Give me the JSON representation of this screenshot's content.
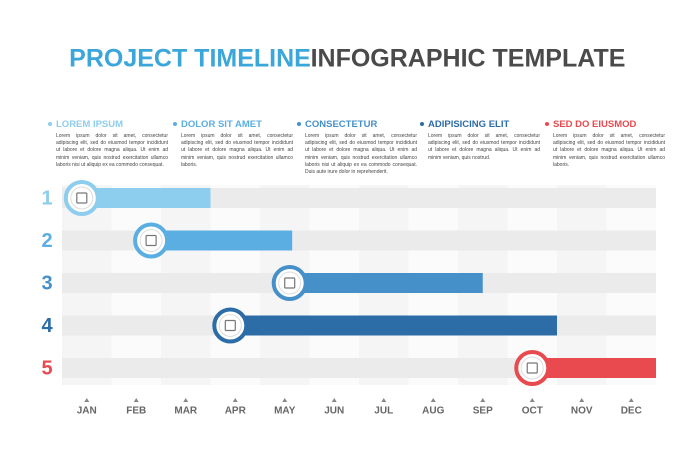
{
  "chart_data": {
    "type": "gantt",
    "title": "PROJECT TIMELINE",
    "subtitle": "INFOGRAPHIC TEMPLATE",
    "title_color": "#3ba6d9",
    "subtitle_color": "#4a4a4a",
    "categories": [
      "JAN",
      "FEB",
      "MAR",
      "APR",
      "MAY",
      "JUN",
      "JUL",
      "AUG",
      "SEP",
      "OCT",
      "NOV",
      "DEC"
    ],
    "xlim": [
      0,
      12
    ],
    "series": [
      {
        "name": "1",
        "title": "LOREM IPSUM",
        "color": "#8dcdee",
        "start": 0.4,
        "end": 3,
        "text": "Lorem ipsum dolor sit amet, consectetur adipiscing elit, sed do eiusmod tempor incididunt ut labore et dolore magna aliqua. Ut enim ad minim veniam, quis nostrud exercitation ullamco laboris nisi ut aliquip ex ea commodo consequat."
      },
      {
        "name": "2",
        "title": "DOLOR SIT AMET",
        "color": "#5aaee2",
        "start": 1.8,
        "end": 4.65,
        "text": "Lorem ipsum dolor sit amet, consectetur adipiscing elit, sed do eiusmod tempor incididunt ut labore et dolore magna aliqua. Ut enim ad minim veniam, quis nostrud exercitation ullamco laboris."
      },
      {
        "name": "3",
        "title": "CONSECTETUR",
        "color": "#4690c9",
        "start": 4.6,
        "end": 8.5,
        "text": "Lorem ipsum dolor sit amet, consectetur adipiscing elit, sed do eiusmod tempor incididunt ut labore et dolore magna aliqua. Ut enim ad minim veniam, quis nostrud exercitation ullamco laboris nisi ut aliquip ex ea commodo consequat. Duis aute irure dolor in reprehenderit."
      },
      {
        "name": "4",
        "title": "ADIPISICING ELIT",
        "color": "#2c6ca7",
        "start": 3.4,
        "end": 10,
        "text": "Lorem ipsum dolor sit amet, consectetur adipiscing elit, sed do eiusmod tempor incididunt ut labore et dolore magna aliqua. Ut enim ad minim veniam, quis nostrud."
      },
      {
        "name": "5",
        "title": "SED DO EIUSMOD",
        "color": "#e84a4f",
        "start": 9.5,
        "end": 12,
        "text": "Lorem ipsum dolor sit amet, consectetur adipiscing elit, sed do eiusmod tempor incididunt ut labore et dolore magna aliqua. Ut enim ad minim veniam, quis nostrud exercitation ullamco laboris."
      }
    ]
  }
}
